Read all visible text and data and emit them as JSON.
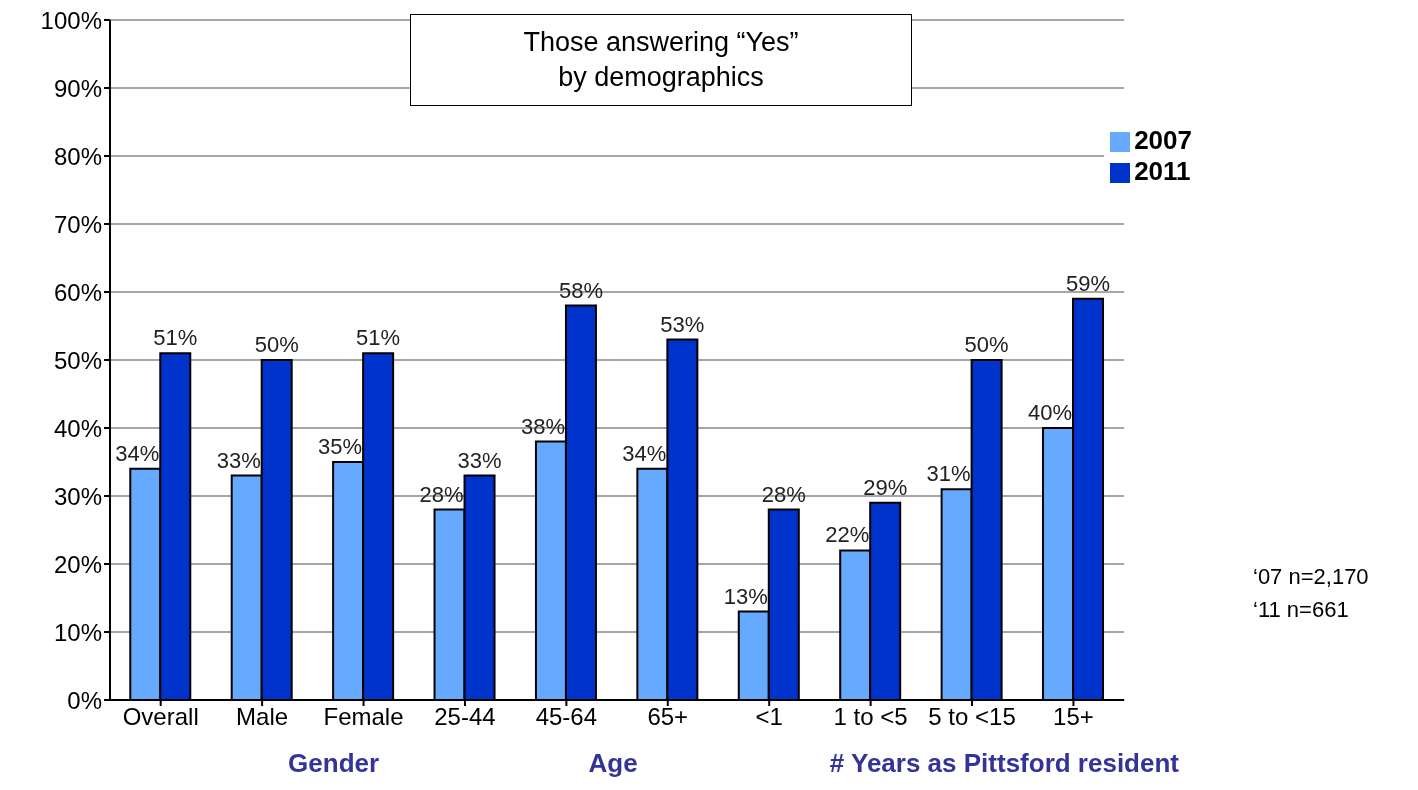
{
  "chart_data": {
    "type": "bar",
    "title": "Those answering “Yes”\nby demographics",
    "categories": [
      "Overall",
      "Male",
      "Female",
      "25-44",
      "45-64",
      "65+",
      "<1",
      "1 to <5",
      "5 to <15",
      "15+"
    ],
    "series": [
      {
        "name": "2007",
        "color": "#66aaff",
        "values": [
          34,
          33,
          35,
          28,
          38,
          34,
          13,
          22,
          31,
          40
        ],
        "value_labels": [
          "34%",
          "33%",
          "35%",
          "28%",
          "38%",
          "34%",
          "13%",
          "22%",
          "31%",
          "40%"
        ]
      },
      {
        "name": "2011",
        "color": "#0033cc",
        "values": [
          51,
          50,
          51,
          33,
          58,
          53,
          28,
          29,
          50,
          59
        ],
        "value_labels": [
          "51%",
          "50%",
          "51%",
          "33%",
          "58%",
          "53%",
          "28%",
          "29%",
          "50%",
          "59%"
        ]
      }
    ],
    "ylim": [
      0,
      100
    ],
    "yticks": [
      {
        "value": 0,
        "label": "0%"
      },
      {
        "value": 10,
        "label": "10%"
      },
      {
        "value": 20,
        "label": "20%"
      },
      {
        "value": 30,
        "label": "30%"
      },
      {
        "value": 40,
        "label": "40%"
      },
      {
        "value": 50,
        "label": "50%"
      },
      {
        "value": 60,
        "label": "60%"
      },
      {
        "value": 70,
        "label": "70%"
      },
      {
        "value": 80,
        "label": "80%"
      },
      {
        "value": 90,
        "label": "90%"
      },
      {
        "value": 100,
        "label": "100%"
      }
    ],
    "grid": "y",
    "legend": "top right",
    "annotations": [
      "Gender",
      "Age",
      "# Years as Pittsford resident",
      "‘07 n=2,170\n‘11 n=661"
    ]
  }
}
